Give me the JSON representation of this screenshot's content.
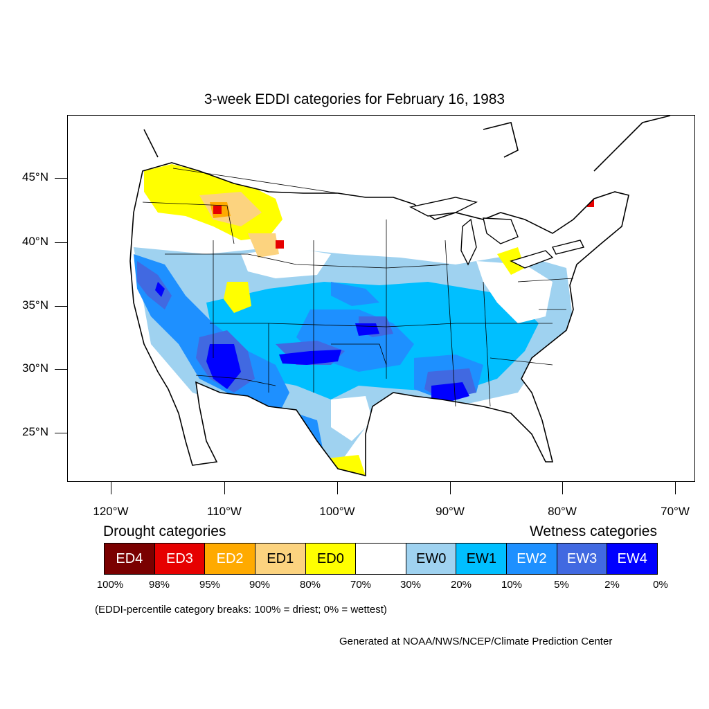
{
  "title": "3-week EDDI categories for February 16, 1983",
  "lat_labels": [
    "45°N",
    "40°N",
    "35°N",
    "30°N",
    "25°N"
  ],
  "lon_labels": [
    "120°W",
    "110°W",
    "100°W",
    "90°W",
    "80°W",
    "70°W"
  ],
  "legend": {
    "drought_title": "Drought categories",
    "wetness_title": "Wetness categories",
    "categories": [
      {
        "label": "ED4",
        "color": "#7a0000",
        "text_color": "#ffffff"
      },
      {
        "label": "ED3",
        "color": "#e60000",
        "text_color": "#ffffff"
      },
      {
        "label": "ED2",
        "color": "#ffaa00",
        "text_color": "#ffffff"
      },
      {
        "label": "ED1",
        "color": "#fcd37f",
        "text_color": "#000000"
      },
      {
        "label": "ED0",
        "color": "#ffff00",
        "text_color": "#000000"
      },
      {
        "label": "",
        "color": "#ffffff",
        "text_color": "#000000"
      },
      {
        "label": "EW0",
        "color": "#9fd2f0",
        "text_color": "#000000"
      },
      {
        "label": "EW1",
        "color": "#00bfff",
        "text_color": "#000000"
      },
      {
        "label": "EW2",
        "color": "#1e90ff",
        "text_color": "#ffffff"
      },
      {
        "label": "EW3",
        "color": "#4169e1",
        "text_color": "#ffffff"
      },
      {
        "label": "EW4",
        "color": "#0000ff",
        "text_color": "#ffffff"
      }
    ],
    "percentiles": [
      "100%",
      "98%",
      "95%",
      "90%",
      "80%",
      "70%",
      "30%",
      "20%",
      "10%",
      "5%",
      "2%",
      "0%"
    ]
  },
  "note": "(EDDI-percentile category breaks: 100% = driest; 0% = wettest)",
  "credit": "Generated at NOAA/NWS/NCEP/Climate Prediction Center"
}
